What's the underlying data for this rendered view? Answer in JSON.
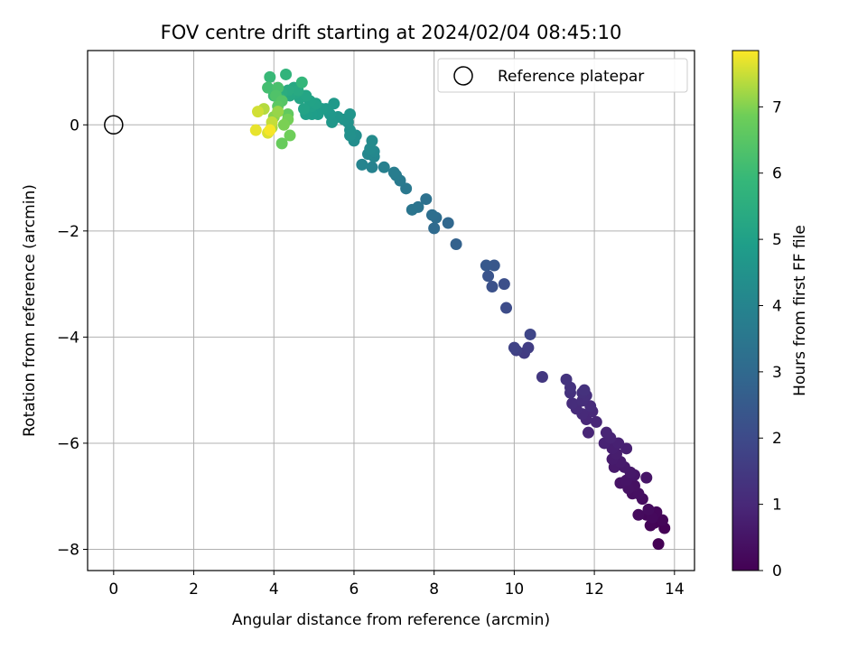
{
  "chart_data": {
    "type": "scatter",
    "title": "FOV centre drift starting at 2024/02/04 08:45:10",
    "xlabel": "Angular distance from reference (arcmin)",
    "ylabel": "Rotation from reference (arcmin)",
    "xlim": [
      -0.65,
      14.5
    ],
    "ylim": [
      -8.4,
      1.4
    ],
    "xticks": [
      "0",
      "2",
      "4",
      "6",
      "8",
      "10",
      "12",
      "14"
    ],
    "yticks": [
      "0",
      "−2",
      "−4",
      "−6",
      "−8"
    ],
    "xtick_values": [
      0,
      2,
      4,
      6,
      8,
      10,
      12,
      14
    ],
    "ytick_values": [
      0,
      -2,
      -4,
      -6,
      -8
    ],
    "grid": true,
    "legend": {
      "position": "top-right",
      "label": "Reference platepar"
    },
    "reference_point": {
      "x": 0,
      "y": 0
    },
    "colorbar": {
      "label": "Hours from first FF file",
      "range": [
        0,
        7.85
      ],
      "colormap": "viridis",
      "ticks": [
        "0",
        "1",
        "2",
        "3",
        "4",
        "5",
        "6",
        "7"
      ],
      "tick_values": [
        0,
        1,
        2,
        3,
        4,
        5,
        6,
        7
      ]
    },
    "points": [
      [
        13.6,
        -7.9,
        0.0
      ],
      [
        13.75,
        -7.6,
        0.03
      ],
      [
        13.5,
        -7.5,
        0.06
      ],
      [
        13.4,
        -7.55,
        0.09
      ],
      [
        13.7,
        -7.45,
        0.12
      ],
      [
        13.3,
        -7.35,
        0.15
      ],
      [
        13.55,
        -7.3,
        0.18
      ],
      [
        13.45,
        -7.4,
        0.21
      ],
      [
        13.1,
        -7.35,
        0.24
      ],
      [
        13.35,
        -7.25,
        0.27
      ],
      [
        13.2,
        -7.05,
        0.3
      ],
      [
        12.95,
        -6.95,
        0.33
      ],
      [
        13.1,
        -6.95,
        0.36
      ],
      [
        13.0,
        -6.8,
        0.39
      ],
      [
        12.85,
        -6.85,
        0.42
      ],
      [
        12.65,
        -6.75,
        0.45
      ],
      [
        12.8,
        -6.7,
        0.48
      ],
      [
        13.3,
        -6.65,
        0.51
      ],
      [
        13.0,
        -6.6,
        0.54
      ],
      [
        12.9,
        -6.55,
        0.57
      ],
      [
        12.75,
        -6.45,
        0.6
      ],
      [
        12.5,
        -6.45,
        0.63
      ],
      [
        12.65,
        -6.35,
        0.66
      ],
      [
        12.45,
        -6.3,
        0.69
      ],
      [
        12.55,
        -6.2,
        0.72
      ],
      [
        12.45,
        -6.1,
        0.75
      ],
      [
        12.8,
        -6.1,
        0.78
      ],
      [
        12.6,
        -6.0,
        0.81
      ],
      [
        12.25,
        -6.0,
        0.84
      ],
      [
        12.4,
        -5.9,
        0.87
      ],
      [
        12.3,
        -5.8,
        0.9
      ],
      [
        11.85,
        -5.8,
        0.93
      ],
      [
        12.05,
        -5.6,
        0.96
      ],
      [
        11.8,
        -5.55,
        0.99
      ],
      [
        11.95,
        -5.4,
        1.02
      ],
      [
        11.7,
        -5.45,
        1.05
      ],
      [
        11.55,
        -5.35,
        1.08
      ],
      [
        11.9,
        -5.3,
        1.11
      ],
      [
        11.45,
        -5.25,
        1.14
      ],
      [
        11.7,
        -5.2,
        1.17
      ],
      [
        11.8,
        -5.1,
        1.2
      ],
      [
        11.7,
        -5.05,
        1.23
      ],
      [
        11.4,
        -5.05,
        1.26
      ],
      [
        11.75,
        -5.0,
        1.29
      ],
      [
        11.4,
        -4.95,
        1.32
      ],
      [
        11.3,
        -4.8,
        1.35
      ],
      [
        10.7,
        -4.75,
        1.45
      ],
      [
        10.25,
        -4.3,
        1.55
      ],
      [
        10.35,
        -4.2,
        1.62
      ],
      [
        10.05,
        -4.25,
        1.7
      ],
      [
        10.0,
        -4.2,
        1.78
      ],
      [
        10.4,
        -3.95,
        1.88
      ],
      [
        9.8,
        -3.45,
        2.05
      ],
      [
        9.75,
        -3.0,
        2.15
      ],
      [
        9.45,
        -3.05,
        2.22
      ],
      [
        9.35,
        -2.85,
        2.3
      ],
      [
        9.5,
        -2.65,
        2.4
      ],
      [
        9.3,
        -2.65,
        2.48
      ],
      [
        8.55,
        -2.25,
        2.75
      ],
      [
        8.35,
        -1.85,
        2.95
      ],
      [
        8.0,
        -1.95,
        3.05
      ],
      [
        8.05,
        -1.75,
        3.12
      ],
      [
        7.95,
        -1.7,
        3.2
      ],
      [
        7.8,
        -1.4,
        3.3
      ],
      [
        7.6,
        -1.55,
        3.38
      ],
      [
        7.45,
        -1.6,
        3.45
      ],
      [
        7.3,
        -1.2,
        3.55
      ],
      [
        7.15,
        -1.05,
        3.62
      ],
      [
        7.05,
        -0.95,
        3.7
      ],
      [
        7.0,
        -0.9,
        3.75
      ],
      [
        6.75,
        -0.8,
        3.85
      ],
      [
        6.45,
        -0.8,
        3.92
      ],
      [
        6.2,
        -0.75,
        4.0
      ],
      [
        6.5,
        -0.6,
        4.05
      ],
      [
        6.35,
        -0.55,
        4.1
      ],
      [
        6.5,
        -0.5,
        4.15
      ],
      [
        6.4,
        -0.45,
        4.2
      ],
      [
        6.45,
        -0.3,
        4.25
      ],
      [
        6.0,
        -0.3,
        4.3
      ],
      [
        6.05,
        -0.2,
        4.35
      ],
      [
        5.9,
        -0.2,
        4.4
      ],
      [
        5.9,
        -0.1,
        4.45
      ],
      [
        5.85,
        0.05,
        4.5
      ],
      [
        5.75,
        0.1,
        4.55
      ],
      [
        5.9,
        0.2,
        4.58
      ],
      [
        5.6,
        0.15,
        4.62
      ],
      [
        5.45,
        0.05,
        4.66
      ],
      [
        5.4,
        0.2,
        4.7
      ],
      [
        5.5,
        0.4,
        4.74
      ],
      [
        5.3,
        0.3,
        4.78
      ],
      [
        5.2,
        0.3,
        4.82
      ],
      [
        5.1,
        0.2,
        4.86
      ],
      [
        4.95,
        0.2,
        4.9
      ],
      [
        4.8,
        0.2,
        4.94
      ],
      [
        4.95,
        0.35,
        4.98
      ],
      [
        5.05,
        0.4,
        5.02
      ],
      [
        4.9,
        0.45,
        5.06
      ],
      [
        4.75,
        0.3,
        5.1
      ],
      [
        4.65,
        0.5,
        5.14
      ],
      [
        4.8,
        0.55,
        5.18
      ],
      [
        4.55,
        0.6,
        5.22
      ],
      [
        4.4,
        0.55,
        5.26
      ],
      [
        4.5,
        0.7,
        5.3
      ],
      [
        4.6,
        0.65,
        5.34
      ],
      [
        4.35,
        0.65,
        5.38
      ],
      [
        4.2,
        0.6,
        5.45
      ],
      [
        4.05,
        0.65,
        5.52
      ],
      [
        4.15,
        0.5,
        5.6
      ],
      [
        4.3,
        0.95,
        5.75
      ],
      [
        4.7,
        0.8,
        5.85
      ],
      [
        3.9,
        0.9,
        5.95
      ],
      [
        4.0,
        0.55,
        6.05
      ],
      [
        3.85,
        0.7,
        6.15
      ],
      [
        4.1,
        0.7,
        6.25
      ],
      [
        4.05,
        0.55,
        6.35
      ],
      [
        4.2,
        0.45,
        6.45
      ],
      [
        4.1,
        0.35,
        6.55
      ],
      [
        4.35,
        0.2,
        6.65
      ],
      [
        4.2,
        -0.35,
        6.75
      ],
      [
        4.4,
        -0.2,
        6.85
      ],
      [
        4.35,
        0.1,
        6.9
      ],
      [
        4.25,
        0.0,
        6.95
      ],
      [
        4.0,
        0.15,
        7.05
      ],
      [
        4.1,
        0.25,
        7.15
      ],
      [
        3.95,
        -0.05,
        7.25
      ],
      [
        3.75,
        0.3,
        7.35
      ],
      [
        3.95,
        0.05,
        7.45
      ],
      [
        3.6,
        0.25,
        7.55
      ],
      [
        3.85,
        -0.15,
        7.62
      ],
      [
        3.55,
        -0.1,
        7.7
      ],
      [
        3.9,
        -0.1,
        7.8
      ]
    ]
  }
}
